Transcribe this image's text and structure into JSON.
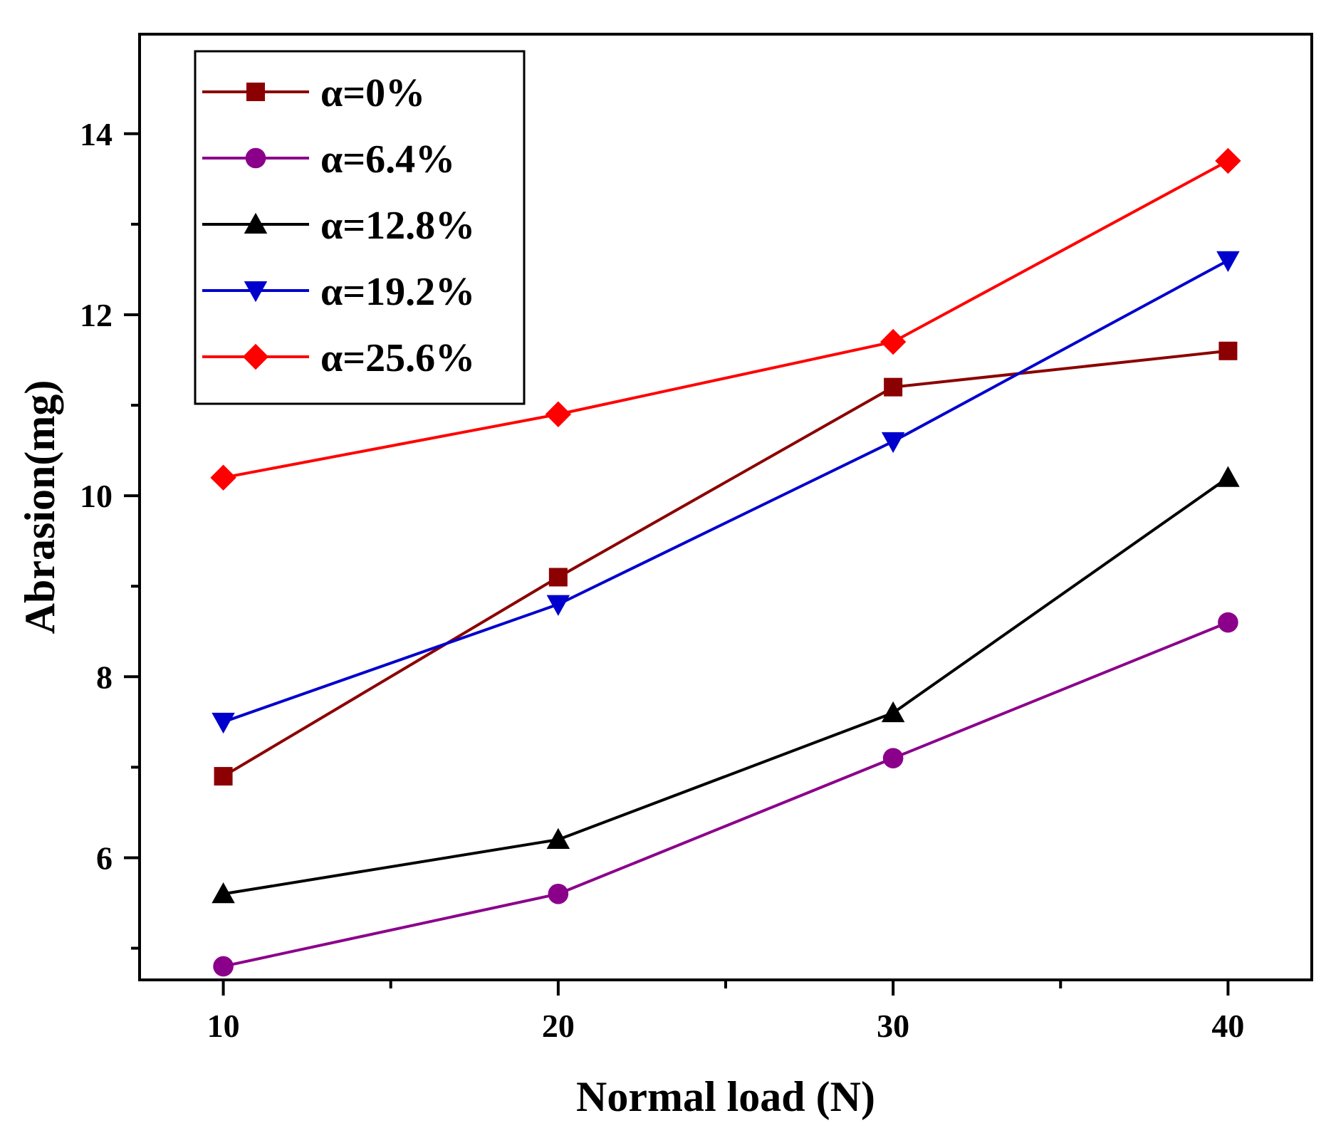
{
  "chart_data": {
    "type": "line",
    "title": "",
    "xlabel": "Normal load (N)",
    "ylabel": "Abrasion(mg)",
    "x": [
      10,
      20,
      30,
      40
    ],
    "xlim": [
      7.5,
      42.5
    ],
    "ylim": [
      4.65,
      15.1
    ],
    "xticks": [
      10,
      20,
      30,
      40
    ],
    "xticks_minor": [
      15,
      25,
      35
    ],
    "yticks": [
      6,
      8,
      10,
      12,
      14
    ],
    "yticks_minor": [
      5,
      7,
      9,
      11,
      13
    ],
    "grid": false,
    "legend_position": "top-left",
    "series": [
      {
        "name": "α=0%",
        "values": [
          6.9,
          9.1,
          11.2,
          11.6
        ],
        "color": "#8B0000",
        "marker": "square"
      },
      {
        "name": "α=6.4%",
        "values": [
          4.8,
          5.6,
          7.1,
          8.6
        ],
        "color": "#8B008B",
        "marker": "circle"
      },
      {
        "name": "α=12.8%",
        "values": [
          5.6,
          6.2,
          7.6,
          10.2
        ],
        "color": "#000000",
        "marker": "triangle-up"
      },
      {
        "name": "α=19.2%",
        "values": [
          7.5,
          8.8,
          10.6,
          12.6
        ],
        "color": "#0000CD",
        "marker": "triangle-down"
      },
      {
        "name": "α=25.6%",
        "values": [
          10.2,
          10.9,
          11.7,
          13.7
        ],
        "color": "#FF0000",
        "marker": "diamond"
      }
    ]
  }
}
